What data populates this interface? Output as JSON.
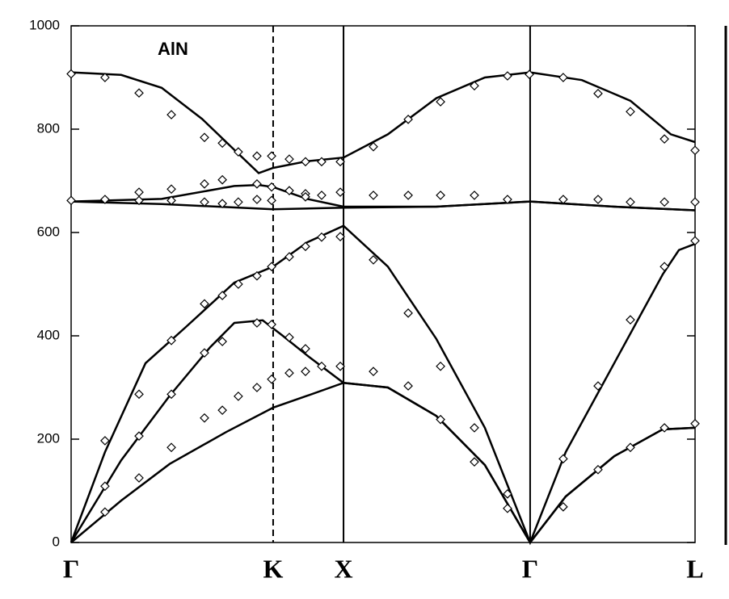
{
  "chart_data": {
    "type": "line",
    "annotation": "AlN",
    "xlim": [
      0,
      3.28
    ],
    "xticks": [
      {
        "value": 0,
        "label": "Γ"
      },
      {
        "value": 1.062,
        "label": "K"
      },
      {
        "value": 1.432,
        "label": "X"
      },
      {
        "value": 2.413,
        "label": "Γ"
      },
      {
        "value": 3.28,
        "label": "L"
      }
    ],
    "xtick_line_styles": [
      "none",
      "dashed",
      "solid",
      "solid",
      "none"
    ],
    "ylim": [
      0,
      1000
    ],
    "yticks": [
      0,
      200,
      400,
      600,
      800,
      1000
    ],
    "series": [
      {
        "color": "#000000",
        "x": [
          0,
          0.263,
          0.518,
          0.816,
          1.062,
          1.241,
          1.432,
          1.665,
          1.92,
          2.175,
          2.413,
          2.6,
          2.855,
          3.11,
          3.28
        ],
        "values": [
          0,
          81,
          152,
          214,
          261,
          284,
          309,
          300,
          245,
          150,
          0,
          89,
          167,
          219,
          222
        ]
      },
      {
        "color": "#000000",
        "x": [
          0,
          0.263,
          0.518,
          0.731,
          0.858,
          1.007,
          1.113,
          1.241,
          1.432,
          1.665,
          1.92,
          2.175,
          2.413,
          2.6,
          2.855,
          3.11,
          3.28
        ],
        "values": [
          0,
          159,
          284,
          378,
          425,
          430,
          400,
          362,
          309,
          300,
          245,
          150,
          0,
          89,
          167,
          219,
          222
        ]
      },
      {
        "color": "#000000",
        "x": [
          0,
          0.178,
          0.391,
          0.603,
          0.858,
          1.062,
          1.241,
          1.432,
          1.665,
          1.92,
          2.175,
          2.413,
          2.6,
          2.855,
          3.11,
          3.195,
          3.28
        ],
        "values": [
          0,
          175,
          347,
          417,
          503,
          534,
          581,
          613,
          534,
          394,
          222,
          0,
          175,
          347,
          519,
          566,
          578
        ]
      },
      {
        "color": "#000000",
        "x": [
          0,
          0.476,
          1.062,
          1.432,
          1.92,
          2.413,
          2.855,
          3.28
        ],
        "values": [
          660,
          655,
          645,
          648,
          650,
          660,
          650,
          643
        ]
      },
      {
        "color": "#000000",
        "x": [
          0,
          0.476,
          0.858,
          0.986,
          1.062,
          1.241,
          1.432,
          1.92,
          2.413,
          2.855,
          3.28
        ],
        "values": [
          660,
          665,
          690,
          692,
          688,
          665,
          650,
          650,
          660,
          650,
          643
        ]
      },
      {
        "color": "#000000",
        "x": [
          0,
          0.263,
          0.476,
          0.688,
          0.858,
          0.986,
          1.062,
          1.241,
          1.432,
          1.665,
          1.92,
          2.175,
          2.413,
          2.685,
          2.94,
          3.153,
          3.28
        ],
        "values": [
          910,
          905,
          880,
          820,
          760,
          715,
          725,
          738,
          745,
          790,
          860,
          900,
          910,
          895,
          855,
          790,
          775
        ]
      }
    ],
    "points": {
      "color": "#000000",
      "x": [
        0,
        0.178,
        0.357,
        0.527,
        0.701,
        0.795,
        0.879,
        0.977,
        1.054,
        1.147,
        1.232,
        1.317,
        1.415,
        1.589,
        1.772,
        1.942,
        2.12,
        2.294,
        2.409,
        2.587,
        2.77,
        2.94,
        3.119,
        3.28,
        0,
        0.178,
        0.357,
        0.357,
        0.527,
        0.527,
        0.701,
        0.701,
        0.795,
        0.795,
        0.879,
        0.977,
        0.977,
        1.054,
        1.054,
        1.147,
        1.232,
        1.232,
        1.317,
        1.415,
        1.589,
        1.772,
        1.942,
        2.12,
        2.294,
        2.587,
        2.77,
        2.94,
        3.119,
        3.28,
        0.178,
        0.178,
        0.178,
        0.357,
        0.357,
        0.357,
        0.527,
        0.527,
        0.527,
        0.701,
        0.701,
        0.701,
        0.795,
        0.795,
        0.795,
        0.879,
        0.879,
        0.977,
        0.977,
        0.977,
        1.054,
        1.054,
        1.054,
        1.147,
        1.147,
        1.147,
        1.232,
        1.232,
        1.232,
        1.317,
        1.317,
        1.415,
        1.415,
        1.589,
        1.589,
        1.772,
        1.772,
        1.942,
        1.942,
        2.12,
        2.12,
        2.294,
        2.294,
        2.587,
        2.587,
        2.77,
        2.77,
        2.94,
        2.94,
        3.119,
        3.119,
        3.28,
        3.28
      ],
      "values": [
        907,
        900,
        870,
        828,
        784,
        773,
        756,
        748,
        748,
        742,
        737,
        737,
        737,
        766,
        819,
        853,
        884,
        903,
        906,
        900,
        869,
        834,
        781,
        759,
        662,
        664,
        678,
        662,
        684,
        662,
        694,
        659,
        702,
        656,
        659,
        694,
        664,
        688,
        662,
        681,
        675,
        669,
        672,
        678,
        672,
        672,
        672,
        672,
        664,
        664,
        664,
        659,
        659,
        659,
        197,
        109,
        59,
        287,
        206,
        125,
        391,
        287,
        184,
        462,
        367,
        241,
        478,
        389,
        256,
        500,
        283,
        516,
        425,
        300,
        534,
        422,
        316,
        553,
        397,
        328,
        573,
        375,
        331,
        591,
        341,
        592,
        341,
        547,
        331,
        444,
        303,
        341,
        238,
        222,
        156,
        94,
        66,
        162,
        69,
        303,
        141,
        431,
        184,
        534,
        222,
        584,
        230
      ]
    }
  }
}
